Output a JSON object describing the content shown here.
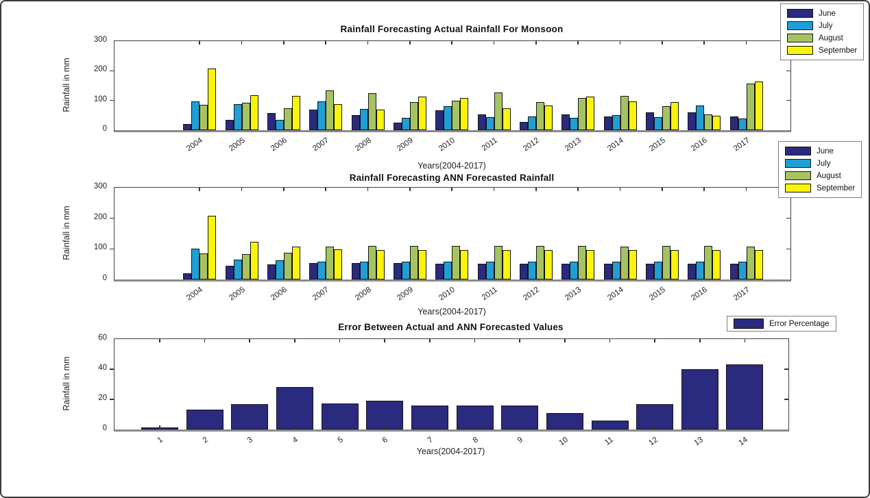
{
  "figure": {
    "background_color": "#ffffff",
    "border_color": "#3a3a3a"
  },
  "palette": {
    "june": "#2a2a7f",
    "july": "#1f9fd5",
    "august": "#a6c361",
    "september": "#f9f409",
    "error": "#2a2a7f",
    "bar_edge": "#141414",
    "baseline": "#8a8a8a"
  },
  "chart_data": [
    {
      "type": "bar",
      "title": "Rainfall Forecasting Actual Rainfall For Monsoon",
      "xlabel": "Years(2004-2017)",
      "ylabel": "Rainfall in mm",
      "ylim": [
        0,
        300
      ],
      "yticks": [
        0,
        100,
        200,
        300
      ],
      "grid": false,
      "legend_position": "top-right-outside",
      "categories": [
        "2004",
        "2005",
        "2006",
        "2007",
        "2008",
        "2009",
        "2010",
        "2011",
        "2012",
        "2013",
        "2014",
        "2015",
        "2016",
        "2017"
      ],
      "series": [
        {
          "name": "June",
          "color": "#2a2a7f",
          "values": [
            20,
            35,
            57,
            70,
            50,
            26,
            67,
            53,
            28,
            52,
            47,
            60,
            60,
            46
          ]
        },
        {
          "name": "July",
          "color": "#1f9fd5",
          "values": [
            97,
            88,
            34,
            98,
            72,
            41,
            80,
            44,
            46,
            42,
            50,
            43,
            84,
            40
          ]
        },
        {
          "name": "August",
          "color": "#a6c361",
          "values": [
            85,
            92,
            73,
            135,
            125,
            95,
            100,
            127,
            95,
            108,
            115,
            80,
            53,
            157
          ]
        },
        {
          "name": "September",
          "color": "#f9f409",
          "values": [
            208,
            117,
            115,
            88,
            70,
            112,
            108,
            75,
            83,
            112,
            97,
            95,
            48,
            163
          ]
        }
      ]
    },
    {
      "type": "bar",
      "title": "Rainfall Forecasting ANN Forecasted Rainfall",
      "xlabel": "Years(2004-2017)",
      "ylabel": "Rainfall in mm",
      "ylim": [
        0,
        300
      ],
      "yticks": [
        0,
        100,
        200,
        300
      ],
      "grid": false,
      "legend_position": "top-right-outside",
      "categories": [
        "2004",
        "2005",
        "2006",
        "2007",
        "2008",
        "2009",
        "2010",
        "2011",
        "2012",
        "2013",
        "2014",
        "2015",
        "2016",
        "2017"
      ],
      "series": [
        {
          "name": "June",
          "color": "#2a2a7f",
          "values": [
            20,
            44,
            49,
            53,
            53,
            54,
            52,
            52,
            52,
            52,
            52,
            52,
            52,
            52
          ]
        },
        {
          "name": "July",
          "color": "#1f9fd5",
          "values": [
            101,
            66,
            62,
            59,
            58,
            59,
            58,
            58,
            58,
            58,
            58,
            58,
            58,
            58
          ]
        },
        {
          "name": "August",
          "color": "#a6c361",
          "values": [
            86,
            83,
            88,
            107,
            110,
            109,
            110,
            110,
            110,
            110,
            108,
            110,
            110,
            108
          ]
        },
        {
          "name": "September",
          "color": "#f9f409",
          "values": [
            208,
            124,
            108,
            98,
            97,
            96,
            97,
            97,
            97,
            97,
            96,
            97,
            97,
            96
          ]
        }
      ]
    },
    {
      "type": "bar",
      "title": "Error Between Actual and ANN Forecasted Values",
      "xlabel": "Years(2004-2017)",
      "ylabel": "Rainfall in mm",
      "ylim": [
        0,
        60
      ],
      "yticks": [
        0,
        20,
        40,
        60
      ],
      "grid": false,
      "legend_position": "top-right-outside",
      "categories": [
        "1",
        "2",
        "3",
        "4",
        "5",
        "6",
        "7",
        "8",
        "9",
        "10",
        "11",
        "12",
        "13",
        "14"
      ],
      "series": [
        {
          "name": "Error Percentage",
          "color": "#2a2a7f",
          "values": [
            1.5,
            13,
            17,
            28,
            17.5,
            19,
            16,
            15.8,
            15.8,
            11,
            6,
            17,
            40,
            43
          ]
        }
      ]
    }
  ]
}
